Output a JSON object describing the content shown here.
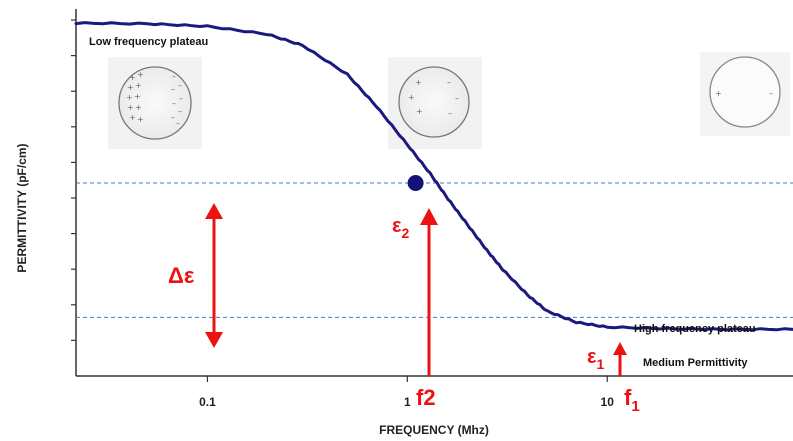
{
  "chart_data": {
    "type": "line",
    "title": "",
    "xlabel": "FREQUENCY (Mhz)",
    "ylabel": "PERMITTIVITY (pF/cm)",
    "x_scale": "log",
    "xlim": [
      0.022,
      85
    ],
    "ylim": [
      0,
      1
    ],
    "x_ticks": [
      {
        "value": 0.1,
        "label": "0.1"
      },
      {
        "value": 1,
        "label": "1"
      },
      {
        "value": 10,
        "label": "10"
      }
    ],
    "y_tick_count": 10,
    "grid": false,
    "series": [
      {
        "color": "#1a1a7e",
        "x": [
          0.022,
          0.05,
          0.1,
          0.2,
          0.3,
          0.5,
          0.7,
          1.0,
          1.3,
          1.6,
          2.0,
          2.5,
          3,
          4,
          5,
          7,
          10,
          20,
          40,
          85
        ],
        "y": [
          1.0,
          0.998,
          0.99,
          0.965,
          0.93,
          0.84,
          0.74,
          0.62,
          0.53,
          0.45,
          0.37,
          0.29,
          0.23,
          0.15,
          0.1,
          0.065,
          0.05,
          0.045,
          0.043,
          0.043
        ]
      }
    ],
    "reference_lines": [
      {
        "axis": "y",
        "value": 0.5,
        "style": "dashed"
      },
      {
        "axis": "y",
        "value": 0.08,
        "style": "dashed"
      }
    ],
    "marker_point": {
      "x": 1.1,
      "y": 0.5
    },
    "annotations": {
      "low_plateau": "Low frequency plateau",
      "high_plateau": "High frequency plateau",
      "medium_permittivity": "Medium Permittivity",
      "delta_epsilon": "Δε",
      "epsilon2_base": "ε",
      "epsilon2_sub": "2",
      "epsilon1_base": "ε",
      "epsilon1_sub": "1",
      "f2": "f2",
      "f1_base": "f",
      "f1_sub": "1"
    }
  },
  "colors": {
    "curve": "#1a1a7e",
    "annotation_red": "#ee1111",
    "reference_line": "#4477cc",
    "axis": "#333333"
  }
}
